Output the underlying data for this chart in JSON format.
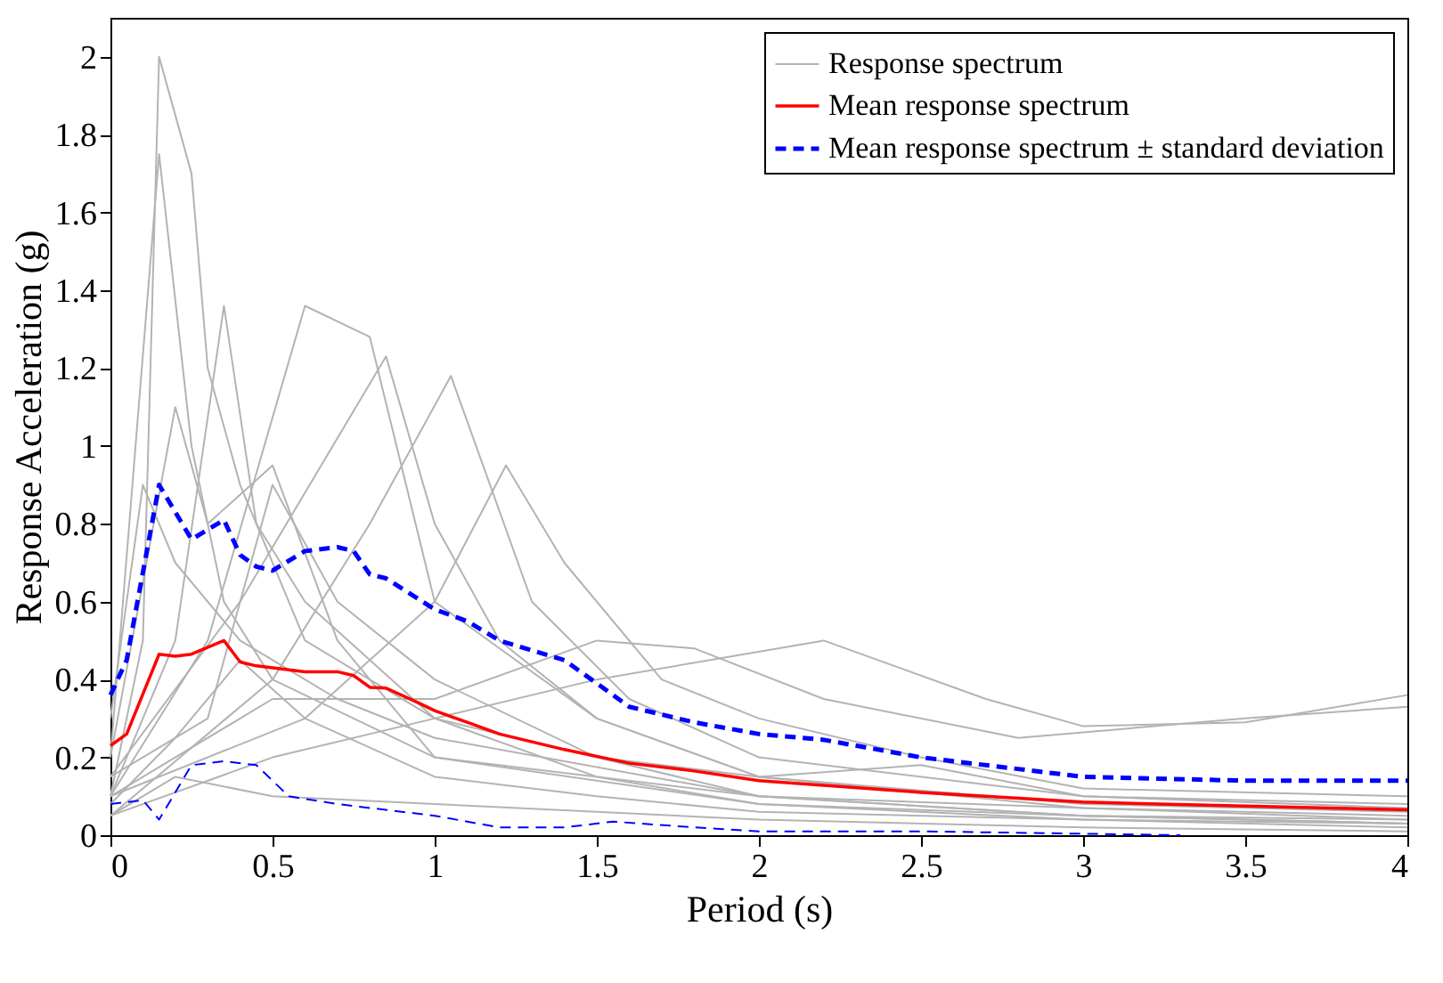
{
  "chart_data": {
    "type": "line",
    "xlabel": "Period (s)",
    "ylabel": "Response Acceleration (g)",
    "xlim": [
      0,
      4
    ],
    "ylim": [
      0,
      2.1
    ],
    "xticks": [
      0,
      0.5,
      1,
      1.5,
      2,
      2.5,
      3,
      3.5,
      4
    ],
    "yticks": [
      0,
      0.2,
      0.4,
      0.6,
      0.8,
      1,
      1.2,
      1.4,
      1.6,
      1.8,
      2
    ],
    "grid": false,
    "legend": "top right",
    "series": [
      {
        "name": "Response spectrum",
        "color": "#b3b3b3",
        "line_style": "solid",
        "x": [
          0,
          0.1,
          0.15,
          0.25,
          0.3,
          0.4,
          0.6,
          1,
          1.5,
          2,
          3,
          4
        ],
        "values": [
          0.1,
          0.5,
          2.0,
          1.7,
          1.2,
          0.9,
          0.5,
          0.3,
          0.15,
          0.08,
          0.05,
          0.03
        ]
      },
      {
        "color": "#b3b3b3",
        "line_style": "solid",
        "x": [
          0,
          0.15,
          0.25,
          0.35,
          0.5,
          1,
          2,
          3,
          4
        ],
        "values": [
          0.2,
          1.75,
          1.0,
          0.6,
          0.4,
          0.2,
          0.08,
          0.04,
          0.02
        ]
      },
      {
        "color": "#b3b3b3",
        "line_style": "solid",
        "x": [
          0,
          0.2,
          0.35,
          0.45,
          0.6,
          1,
          2,
          3,
          4
        ],
        "values": [
          0.1,
          0.5,
          1.36,
          0.8,
          0.6,
          0.3,
          0.1,
          0.05,
          0.03
        ]
      },
      {
        "color": "#b3b3b3",
        "line_style": "solid",
        "x": [
          0,
          0.3,
          0.6,
          0.8,
          1.0,
          1.5,
          2,
          3,
          4
        ],
        "values": [
          0.1,
          0.5,
          1.36,
          1.28,
          0.6,
          0.3,
          0.15,
          0.07,
          0.05
        ]
      },
      {
        "color": "#b3b3b3",
        "line_style": "solid",
        "x": [
          0,
          0.4,
          0.85,
          1.0,
          1.2,
          1.5,
          2,
          3,
          4
        ],
        "values": [
          0.15,
          0.6,
          1.23,
          0.8,
          0.5,
          0.3,
          0.15,
          0.08,
          0.06
        ]
      },
      {
        "color": "#b3b3b3",
        "line_style": "solid",
        "x": [
          0,
          0.5,
          0.8,
          1.05,
          1.3,
          1.6,
          2,
          3,
          4
        ],
        "values": [
          0.05,
          0.4,
          0.8,
          1.18,
          0.6,
          0.35,
          0.2,
          0.1,
          0.08
        ]
      },
      {
        "color": "#b3b3b3",
        "line_style": "solid",
        "x": [
          0,
          0.6,
          1.0,
          1.22,
          1.4,
          1.7,
          2,
          2.5,
          3,
          4
        ],
        "values": [
          0.1,
          0.3,
          0.6,
          0.95,
          0.7,
          0.4,
          0.3,
          0.2,
          0.12,
          0.1
        ]
      },
      {
        "color": "#b3b3b3",
        "line_style": "solid",
        "x": [
          0,
          0.5,
          1,
          1.5,
          2.2,
          2.7,
          3,
          3.5,
          4
        ],
        "values": [
          0.05,
          0.2,
          0.3,
          0.4,
          0.5,
          0.35,
          0.28,
          0.29,
          0.36
        ]
      },
      {
        "color": "#b3b3b3",
        "line_style": "solid",
        "x": [
          0,
          0.5,
          1,
          1.5,
          1.8,
          2.2,
          2.8,
          3.5,
          4
        ],
        "values": [
          0.1,
          0.35,
          0.35,
          0.5,
          0.48,
          0.35,
          0.25,
          0.3,
          0.33
        ]
      },
      {
        "color": "#b3b3b3",
        "line_style": "solid",
        "x": [
          0,
          0.2,
          0.5,
          1,
          2,
          3,
          4
        ],
        "values": [
          0.05,
          0.15,
          0.1,
          0.08,
          0.04,
          0.02,
          0.01
        ]
      },
      {
        "color": "#b3b3b3",
        "line_style": "solid",
        "x": [
          0,
          0.1,
          0.2,
          0.4,
          0.7,
          1,
          2,
          3,
          4
        ],
        "values": [
          0.3,
          0.9,
          0.7,
          0.5,
          0.35,
          0.25,
          0.1,
          0.05,
          0.04
        ]
      },
      {
        "color": "#b3b3b3",
        "line_style": "solid",
        "x": [
          0,
          0.3,
          0.5,
          0.7,
          1,
          1.5,
          2,
          2.5,
          3,
          4
        ],
        "values": [
          0.15,
          0.3,
          0.9,
          0.6,
          0.4,
          0.2,
          0.15,
          0.18,
          0.1,
          0.07
        ]
      },
      {
        "color": "#b3b3b3",
        "line_style": "solid",
        "x": [
          0,
          0.2,
          0.4,
          0.6,
          1,
          1.5,
          2,
          3,
          4
        ],
        "values": [
          0.08,
          0.25,
          0.45,
          0.3,
          0.15,
          0.1,
          0.06,
          0.04,
          0.03
        ]
      },
      {
        "color": "#b3b3b3",
        "line_style": "solid",
        "x": [
          0,
          0.2,
          0.3,
          0.5,
          0.7,
          1,
          2,
          4
        ],
        "values": [
          0.2,
          1.1,
          0.8,
          0.95,
          0.5,
          0.2,
          0.1,
          0.04
        ]
      },
      {
        "name": "Mean response spectrum",
        "color": "#ff0000",
        "line_style": "solid",
        "x": [
          0,
          0.05,
          0.15,
          0.2,
          0.25,
          0.35,
          0.4,
          0.45,
          0.6,
          0.7,
          0.75,
          0.8,
          0.85,
          0.95,
          1.0,
          1.1,
          1.2,
          1.4,
          1.6,
          1.8,
          2.0,
          2.5,
          3.0,
          3.5,
          4.0
        ],
        "values": [
          0.23,
          0.26,
          0.465,
          0.46,
          0.465,
          0.5,
          0.445,
          0.435,
          0.42,
          0.42,
          0.41,
          0.38,
          0.378,
          0.34,
          0.32,
          0.29,
          0.26,
          0.22,
          0.185,
          0.165,
          0.14,
          0.11,
          0.085,
          0.075,
          0.065
        ]
      },
      {
        "name": "Mean response spectrum ± standard deviation",
        "color": "#0000ff",
        "line_style": "dashed",
        "x": [
          0,
          0.05,
          0.15,
          0.25,
          0.35,
          0.4,
          0.45,
          0.5,
          0.6,
          0.7,
          0.75,
          0.8,
          0.85,
          1.0,
          1.1,
          1.2,
          1.4,
          1.6,
          1.8,
          2.0,
          2.2,
          2.5,
          3.0,
          3.5,
          4.0
        ],
        "values": [
          0.36,
          0.45,
          0.9,
          0.76,
          0.81,
          0.72,
          0.69,
          0.68,
          0.73,
          0.74,
          0.73,
          0.67,
          0.66,
          0.58,
          0.55,
          0.5,
          0.45,
          0.33,
          0.29,
          0.26,
          0.245,
          0.2,
          0.15,
          0.14,
          0.14
        ]
      },
      {
        "color": "#0000ff",
        "line_style": "dashed",
        "x": [
          0,
          0.1,
          0.15,
          0.25,
          0.35,
          0.45,
          0.55,
          0.7,
          0.8,
          1.0,
          1.2,
          1.4,
          1.55,
          1.8,
          2.0,
          2.5,
          3.3
        ],
        "values": [
          0.08,
          0.09,
          0.04,
          0.18,
          0.19,
          0.18,
          0.1,
          0.08,
          0.07,
          0.05,
          0.02,
          0.02,
          0.035,
          0.02,
          0.01,
          0.01,
          0.0
        ]
      }
    ]
  }
}
